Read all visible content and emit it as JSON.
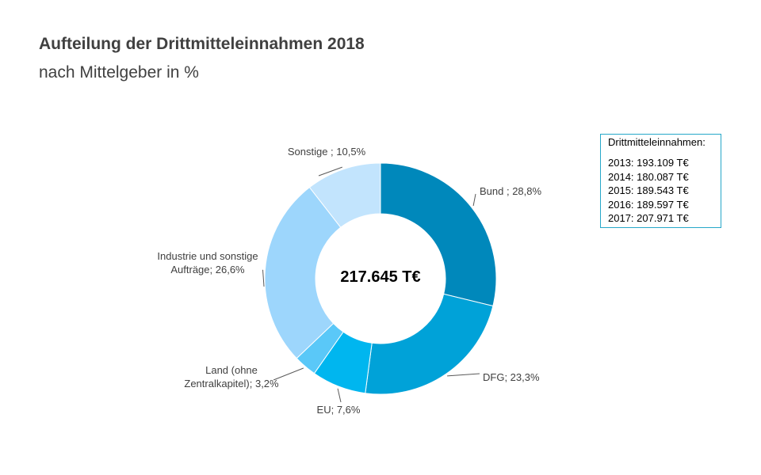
{
  "chart_data": {
    "type": "pie",
    "style": "donut",
    "title": "Aufteilung der Drittmitteleinnahmen 2018",
    "subtitle": "nach Mittelgeber in %",
    "center_label": "217.645 T€",
    "slices": [
      {
        "label": "Bund ; 28,8%",
        "value": 28.8,
        "color": "#0088bb"
      },
      {
        "label": "DFG; 23,3%",
        "value": 23.3,
        "color": "#00a2d8"
      },
      {
        "label": "EU; 7,6%",
        "value": 7.6,
        "color": "#00b6ef"
      },
      {
        "label": "Land (ohne Zentralkapitel); 3,2%",
        "value": 3.2,
        "color": "#5ac8f8"
      },
      {
        "label": "Industrie und sonstige Aufträge; 26,6%",
        "value": 26.6,
        "color": "#9dd6fc"
      },
      {
        "label": "Sonstige ; 10,5%",
        "value": 10.5,
        "color": "#c2e4fd"
      }
    ]
  },
  "info_box": {
    "title": "Drittmitteleinnahmen:",
    "items": [
      "2013: 193.109 T€",
      "2014: 180.087 T€",
      "2015: 189.543 T€",
      "2016: 189.597 T€",
      "2017: 207.971 T€"
    ],
    "border_color": "#26a7c9"
  }
}
